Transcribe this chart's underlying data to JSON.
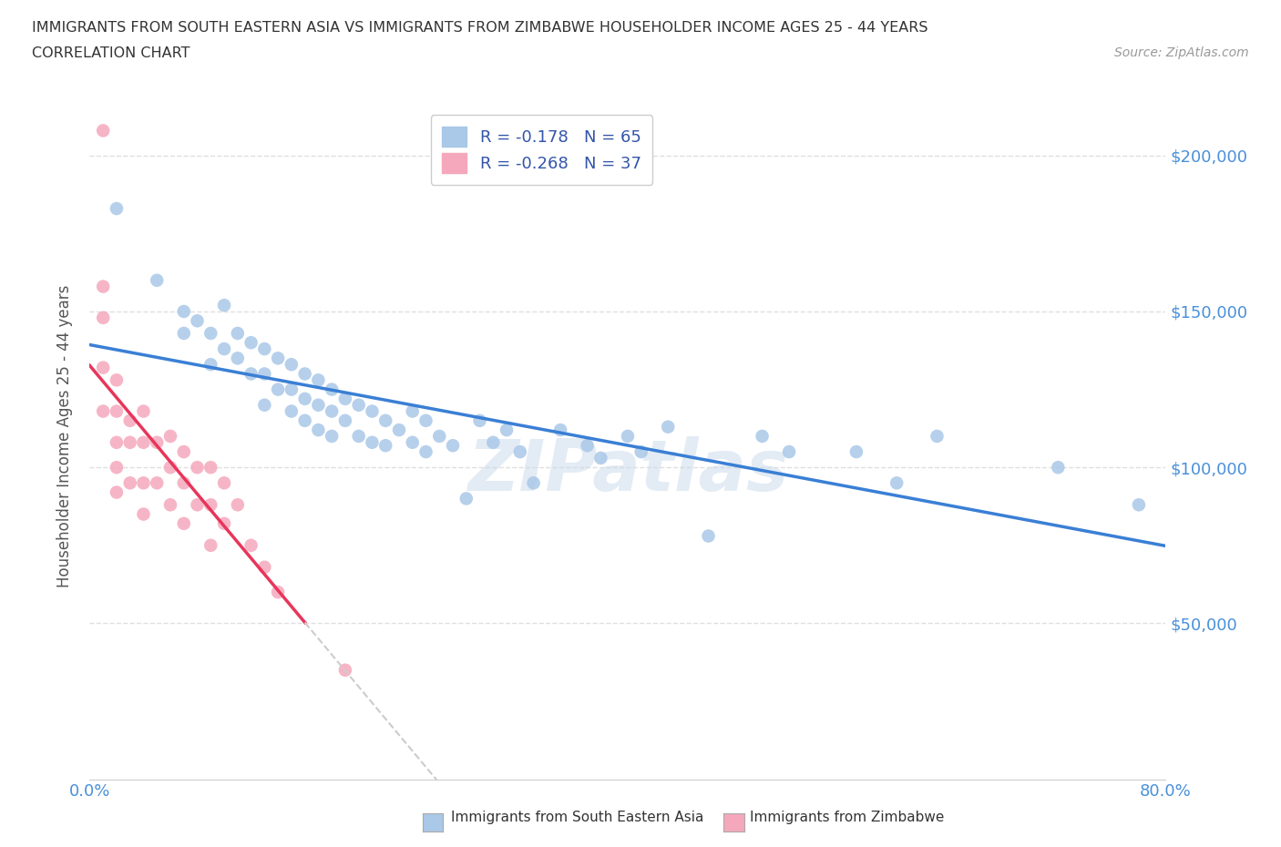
{
  "title_line1": "IMMIGRANTS FROM SOUTH EASTERN ASIA VS IMMIGRANTS FROM ZIMBABWE HOUSEHOLDER INCOME AGES 25 - 44 YEARS",
  "title_line2": "CORRELATION CHART",
  "source_text": "Source: ZipAtlas.com",
  "ylabel": "Householder Income Ages 25 - 44 years",
  "xlim": [
    0.0,
    0.8
  ],
  "ylim": [
    0,
    220000
  ],
  "xticks": [
    0.0,
    0.1,
    0.2,
    0.3,
    0.4,
    0.5,
    0.6,
    0.7,
    0.8
  ],
  "xticklabels": [
    "0.0%",
    "",
    "",
    "",
    "",
    "",
    "",
    "",
    "80.0%"
  ],
  "yticks": [
    0,
    50000,
    100000,
    150000,
    200000
  ],
  "yticklabels": [
    "",
    "$50,000",
    "$100,000",
    "$150,000",
    "$200,000"
  ],
  "R_asia": -0.178,
  "N_asia": 65,
  "R_zimbabwe": -0.268,
  "N_zimbabwe": 37,
  "color_asia": "#aac8e8",
  "color_zimbabwe": "#f5a8bc",
  "line_color_asia": "#3a7fd5",
  "line_color_zimbabwe": "#e8355a",
  "line_color_zimbabwe_dash": "#cccccc",
  "watermark": "ZIPatlas",
  "background_color": "#ffffff",
  "grid_color": "#e0e0e0",
  "asia_x": [
    0.02,
    0.05,
    0.07,
    0.07,
    0.08,
    0.09,
    0.09,
    0.1,
    0.1,
    0.11,
    0.11,
    0.12,
    0.12,
    0.13,
    0.13,
    0.13,
    0.14,
    0.14,
    0.15,
    0.15,
    0.15,
    0.16,
    0.16,
    0.16,
    0.17,
    0.17,
    0.17,
    0.18,
    0.18,
    0.18,
    0.19,
    0.19,
    0.2,
    0.2,
    0.21,
    0.21,
    0.22,
    0.22,
    0.23,
    0.24,
    0.24,
    0.25,
    0.25,
    0.26,
    0.27,
    0.28,
    0.29,
    0.3,
    0.31,
    0.32,
    0.33,
    0.35,
    0.37,
    0.38,
    0.4,
    0.41,
    0.43,
    0.46,
    0.5,
    0.52,
    0.57,
    0.6,
    0.63,
    0.72,
    0.78
  ],
  "asia_y": [
    183000,
    160000,
    150000,
    143000,
    147000,
    143000,
    133000,
    152000,
    138000,
    143000,
    135000,
    140000,
    130000,
    138000,
    130000,
    120000,
    135000,
    125000,
    133000,
    125000,
    118000,
    130000,
    122000,
    115000,
    128000,
    120000,
    112000,
    125000,
    118000,
    110000,
    122000,
    115000,
    120000,
    110000,
    118000,
    108000,
    115000,
    107000,
    112000,
    118000,
    108000,
    115000,
    105000,
    110000,
    107000,
    90000,
    115000,
    108000,
    112000,
    105000,
    95000,
    112000,
    107000,
    103000,
    110000,
    105000,
    113000,
    78000,
    110000,
    105000,
    105000,
    95000,
    110000,
    100000,
    88000
  ],
  "zimbabwe_x": [
    0.01,
    0.01,
    0.01,
    0.01,
    0.01,
    0.02,
    0.02,
    0.02,
    0.02,
    0.02,
    0.03,
    0.03,
    0.03,
    0.04,
    0.04,
    0.04,
    0.04,
    0.05,
    0.05,
    0.06,
    0.06,
    0.06,
    0.07,
    0.07,
    0.07,
    0.08,
    0.08,
    0.09,
    0.09,
    0.09,
    0.1,
    0.1,
    0.11,
    0.12,
    0.13,
    0.14,
    0.19
  ],
  "zimbabwe_y": [
    208000,
    158000,
    148000,
    132000,
    118000,
    128000,
    118000,
    108000,
    100000,
    92000,
    115000,
    108000,
    95000,
    118000,
    108000,
    95000,
    85000,
    108000,
    95000,
    110000,
    100000,
    88000,
    105000,
    95000,
    82000,
    100000,
    88000,
    100000,
    88000,
    75000,
    95000,
    82000,
    88000,
    75000,
    68000,
    60000,
    35000
  ],
  "zim_line_solid_end": 0.16,
  "zim_line_dash_end": 0.45
}
